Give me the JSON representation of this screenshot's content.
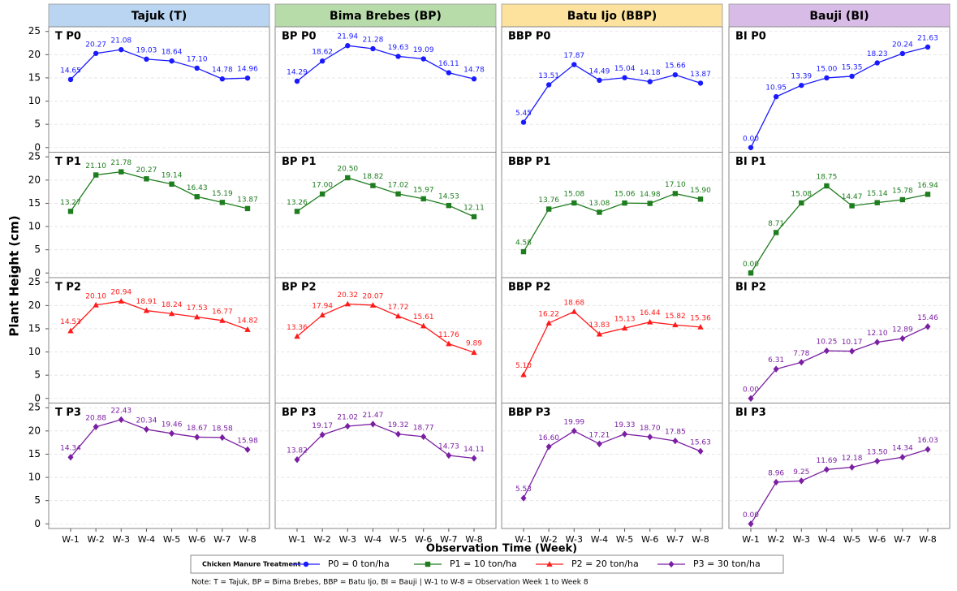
{
  "chart_data": {
    "type": "line",
    "ylabel": "Plant Height (cm)",
    "xlabel": "Observation Time (Week)",
    "categories": [
      "W-1",
      "W-2",
      "W-3",
      "W-4",
      "W-5",
      "W-6",
      "W-7",
      "W-8"
    ],
    "ylim": [
      -1,
      26
    ],
    "yticks": [
      0,
      5,
      10,
      15,
      20,
      25
    ],
    "grid": true,
    "columns": [
      {
        "label": "Tajuk (T)",
        "color": "#b9d5f2"
      },
      {
        "label": "Bima Brebes (BP)",
        "color": "#b7dcaa"
      },
      {
        "label": "Batu Ijo (BBP)",
        "color": "#fce29c"
      },
      {
        "label": "Bauji (BI)",
        "color": "#d9bbe7"
      }
    ],
    "panels": [
      {
        "title": "T P0",
        "color": "#1a1aff",
        "marker": "circle",
        "values": [
          14.65,
          20.27,
          21.08,
          19.03,
          18.64,
          17.1,
          14.78,
          14.96
        ],
        "value_labels": [
          "14.65",
          "20.27",
          "21.08",
          "19.03",
          "18.64",
          "17.10",
          "14.78",
          "14.96"
        ]
      },
      {
        "title": "BP P0",
        "color": "#1a1aff",
        "marker": "circle",
        "values": [
          14.29,
          18.62,
          21.94,
          21.28,
          19.63,
          19.09,
          16.11,
          14.78
        ],
        "value_labels": [
          "14.29",
          "18.62",
          "21.94",
          "21.28",
          "19.63",
          "19.09",
          "16.11",
          "14.78"
        ]
      },
      {
        "title": "BBP P0",
        "color": "#1a1aff",
        "marker": "circle",
        "values": [
          5.45,
          13.51,
          17.87,
          14.49,
          15.04,
          14.18,
          15.66,
          13.87
        ],
        "value_labels": [
          "5.45",
          "13.51",
          "17.87",
          "14.49",
          "15.04",
          "14.18",
          "15.66",
          "13.87"
        ]
      },
      {
        "title": "BI P0",
        "color": "#1a1aff",
        "marker": "circle",
        "values": [
          0.0,
          10.95,
          13.39,
          15.0,
          15.35,
          18.23,
          20.24,
          21.63
        ],
        "value_labels": [
          "0.00",
          "10.95",
          "13.39",
          "15.00",
          "15.35",
          "18.23",
          "20.24",
          "21.63"
        ]
      },
      {
        "title": "T P1",
        "color": "#1e7d1e",
        "marker": "square",
        "values": [
          13.27,
          21.1,
          21.78,
          20.27,
          19.14,
          16.43,
          15.19,
          13.87
        ],
        "value_labels": [
          "13.27",
          "21.10",
          "21.78",
          "20.27",
          "19.14",
          "16.43",
          "15.19",
          "13.87"
        ]
      },
      {
        "title": "BP P1",
        "color": "#1e7d1e",
        "marker": "square",
        "values": [
          13.26,
          17.0,
          20.5,
          18.82,
          17.02,
          15.97,
          14.53,
          12.11
        ],
        "value_labels": [
          "13.26",
          "17.00",
          "20.50",
          "18.82",
          "17.02",
          "15.97",
          "14.53",
          "12.11"
        ]
      },
      {
        "title": "BBP P1",
        "color": "#1e7d1e",
        "marker": "square",
        "values": [
          4.58,
          13.76,
          15.08,
          13.08,
          15.06,
          14.98,
          17.1,
          15.9
        ],
        "value_labels": [
          "4.58",
          "13.76",
          "15.08",
          "13.08",
          "15.06",
          "14.98",
          "17.10",
          "15.90"
        ]
      },
      {
        "title": "BI P1",
        "color": "#1e7d1e",
        "marker": "square",
        "values": [
          0.0,
          8.71,
          15.08,
          18.75,
          14.47,
          15.14,
          15.78,
          16.94
        ],
        "value_labels": [
          "0.00",
          "8.71",
          "15.08",
          "18.75",
          "14.47",
          "15.14",
          "15.78",
          "16.94"
        ]
      },
      {
        "title": "T P2",
        "color": "#ff1a1a",
        "marker": "triangle",
        "values": [
          14.53,
          20.1,
          20.94,
          18.91,
          18.24,
          17.53,
          16.77,
          14.82
        ],
        "value_labels": [
          "14.53",
          "20.10",
          "20.94",
          "18.91",
          "18.24",
          "17.53",
          "16.77",
          "14.82"
        ]
      },
      {
        "title": "BP P2",
        "color": "#ff1a1a",
        "marker": "triangle",
        "values": [
          13.36,
          17.94,
          20.32,
          20.07,
          17.72,
          15.61,
          11.76,
          9.89
        ],
        "value_labels": [
          "13.36",
          "17.94",
          "20.32",
          "20.07",
          "17.72",
          "15.61",
          "11.76",
          "9.89"
        ]
      },
      {
        "title": "BBP P2",
        "color": "#ff1a1a",
        "marker": "triangle",
        "values": [
          5.1,
          16.22,
          18.68,
          13.83,
          15.13,
          16.44,
          15.82,
          15.36
        ],
        "value_labels": [
          "5.10",
          "16.22",
          "18.68",
          "13.83",
          "15.13",
          "16.44",
          "15.82",
          "15.36"
        ]
      },
      {
        "title": "BI P2",
        "color": "#7b1fa2",
        "marker": "diamond",
        "values": [
          0.0,
          6.31,
          7.78,
          10.25,
          10.17,
          12.1,
          12.89,
          15.46
        ],
        "value_labels": [
          "0.00",
          "6.31",
          "7.78",
          "10.25",
          "10.17",
          "12.10",
          "12.89",
          "15.46"
        ]
      },
      {
        "title": "T P3",
        "color": "#7b1fa2",
        "marker": "diamond",
        "values": [
          14.34,
          20.88,
          22.43,
          20.34,
          19.46,
          18.67,
          18.58,
          15.98
        ],
        "value_labels": [
          "14.34",
          "20.88",
          "22.43",
          "20.34",
          "19.46",
          "18.67",
          "18.58",
          "15.98"
        ]
      },
      {
        "title": "BP P3",
        "color": "#7b1fa2",
        "marker": "diamond",
        "values": [
          13.82,
          19.17,
          21.02,
          21.47,
          19.32,
          18.77,
          14.73,
          14.11
        ],
        "value_labels": [
          "13.82",
          "19.17",
          "21.02",
          "21.47",
          "19.32",
          "18.77",
          "14.73",
          "14.11"
        ]
      },
      {
        "title": "BBP P3",
        "color": "#7b1fa2",
        "marker": "diamond",
        "values": [
          5.53,
          16.6,
          19.99,
          17.21,
          19.33,
          18.7,
          17.85,
          15.63
        ],
        "value_labels": [
          "5.53",
          "16.60",
          "19.99",
          "17.21",
          "19.33",
          "18.70",
          "17.85",
          "15.63"
        ]
      },
      {
        "title": "BI P3",
        "color": "#7b1fa2",
        "marker": "diamond",
        "values": [
          0.0,
          8.96,
          9.25,
          11.69,
          12.18,
          13.5,
          14.34,
          16.03
        ],
        "value_labels": [
          "0.00",
          "8.96",
          "9.25",
          "11.69",
          "12.18",
          "13.50",
          "14.34",
          "16.03"
        ]
      }
    ],
    "legend": {
      "title": "Chicken Manure Treatment",
      "items": [
        {
          "label": "P0 = 0 ton/ha",
          "color": "#1a1aff",
          "marker": "circle"
        },
        {
          "label": "P1 = 10 ton/ha",
          "color": "#1e7d1e",
          "marker": "square"
        },
        {
          "label": "P2 = 20 ton/ha",
          "color": "#ff1a1a",
          "marker": "triangle"
        },
        {
          "label": "P3 = 30 ton/ha",
          "color": "#7b1fa2",
          "marker": "diamond"
        }
      ]
    },
    "note": "Note: T = Tajuk, BP = Bima Brebes, BBP = Batu Ijo, BI = Bauji  |  W-1 to W-8 = Observation Week 1 to Week 8"
  }
}
